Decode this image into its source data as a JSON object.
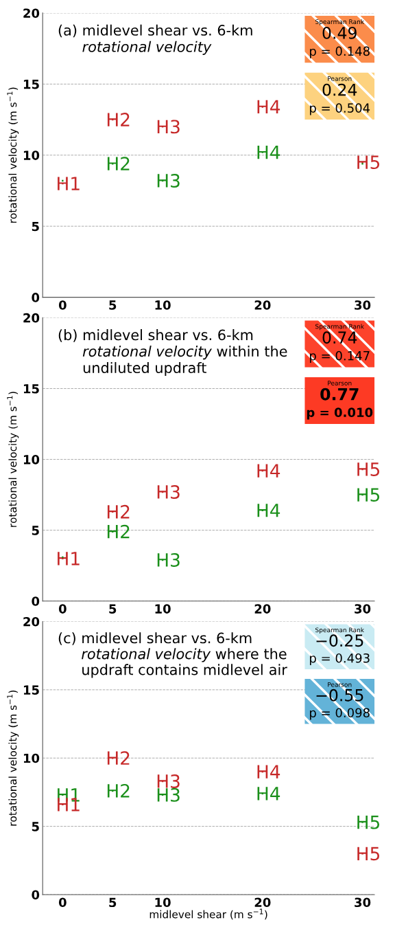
{
  "chart_data": [
    {
      "type": "scatter",
      "title": "(a) midlevel shear vs. 6-km",
      "subtitle": "rotational velocity",
      "ylabel": "rotational velocity (m s$^{−1}$)",
      "x": [
        0,
        5,
        10,
        20,
        30
      ],
      "xlim": [
        -2,
        31.2
      ],
      "xticks": [
        0,
        5,
        10,
        20,
        30
      ],
      "ylim": [
        0,
        20
      ],
      "yticks": [
        0,
        5,
        10,
        15,
        20
      ],
      "grid": "y",
      "series": [
        {
          "color": "#1a8f1a",
          "values": [
            8.2,
            9.4,
            8.2,
            10.2,
            9.4
          ],
          "value_labels": [
            null,
            "H2",
            "H3",
            "H4",
            null
          ]
        },
        {
          "color": "#c62828",
          "values": [
            8.0,
            12.5,
            12.0,
            13.4,
            9.5
          ],
          "value_labels": [
            "H1",
            "H2",
            "H3",
            "H4",
            "H5"
          ]
        }
      ],
      "annotations": [
        "Spearman Rank",
        "0.49",
        "p = 0.148",
        "Pearson",
        "0.24",
        "p = 0.504"
      ]
    },
    {
      "type": "scatter",
      "title": "(b) midlevel shear vs. 6-km",
      "subtitle": "rotational velocity within the undiluted updraft",
      "ylabel": "rotational velocity (m s$^{−1}$)",
      "x": [
        0,
        5,
        10,
        20,
        30
      ],
      "xlim": [
        -2,
        31.2
      ],
      "xticks": [
        0,
        5,
        10,
        20,
        30
      ],
      "ylim": [
        0,
        20
      ],
      "yticks": [
        0,
        5,
        10,
        15,
        20
      ],
      "grid": "y",
      "series": [
        {
          "color": "#1a8f1a",
          "values": [
            3.1,
            4.9,
            2.9,
            6.4,
            7.5
          ],
          "value_labels": [
            null,
            "H2",
            "H3",
            "H4",
            "H5"
          ]
        },
        {
          "color": "#c62828",
          "values": [
            3.0,
            6.3,
            7.7,
            9.2,
            9.3
          ],
          "value_labels": [
            "H1",
            "H2",
            "H3",
            "H4",
            "H5"
          ]
        }
      ],
      "annotations": [
        "Spearman Rank",
        "0.74",
        "p = 0.147",
        "Pearson",
        "0.77",
        "p = 0.010"
      ]
    },
    {
      "type": "scatter",
      "title": "(c) midlevel shear vs. 6-km",
      "subtitle": "rotational velocity where the updraft contains midlevel air",
      "xlabel": "midlevel shear (m s$^{−1}$)",
      "ylabel": "rotational velocity (m s$^{−1}$)",
      "x": [
        0,
        5,
        10,
        20,
        30
      ],
      "xlim": [
        -2,
        31.2
      ],
      "xticks": [
        0,
        5,
        10,
        20,
        30
      ],
      "ylim": [
        0,
        20
      ],
      "yticks": [
        0,
        5,
        10,
        15,
        20
      ],
      "grid": "y",
      "series": [
        {
          "color": "#1a8f1a",
          "values": [
            7.3,
            7.6,
            7.3,
            7.4,
            5.3
          ],
          "value_labels": [
            "H1",
            "H2",
            "H3",
            "H4",
            "H5"
          ]
        },
        {
          "color": "#c62828",
          "values": [
            6.6,
            10.0,
            8.3,
            9.0,
            3.0
          ],
          "value_labels": [
            "H1",
            "H2",
            "H3",
            "H4",
            "H5"
          ]
        }
      ],
      "annotations": [
        "Spearman Rank",
        "−0.25",
        "p = 0.493",
        "Pearson",
        "−0.55",
        "p = 0.098"
      ]
    }
  ]
}
